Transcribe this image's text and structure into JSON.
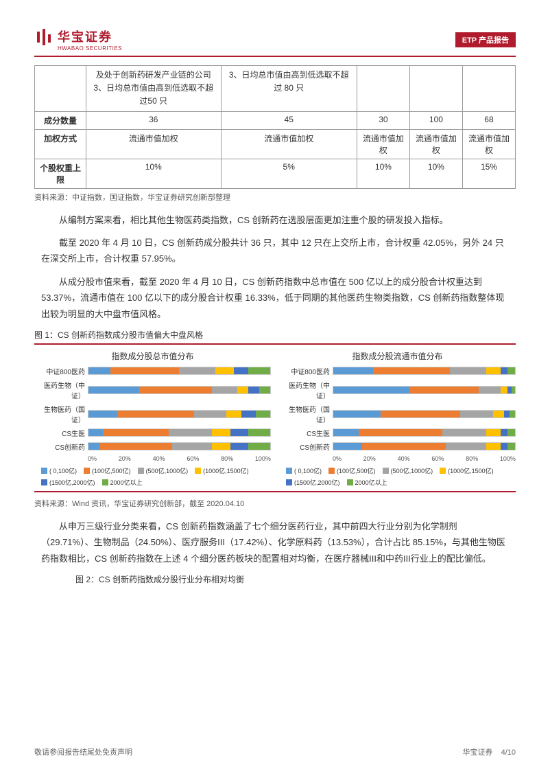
{
  "header": {
    "logo_cn": "华宝证券",
    "logo_en": "HWABAO SECURITIES",
    "badge": "ETP 产品报告"
  },
  "table": {
    "row0_col1": "及处于创新药研发产业链的公司\n3、日均总市值由高到低选取不超过50 只",
    "row0_col2": "3、日均总市值由高到低选取不超过 80 只",
    "rows": [
      {
        "hdr": "成分数量",
        "cells": [
          "36",
          "45",
          "30",
          "100",
          "68"
        ]
      },
      {
        "hdr": "加权方式",
        "cells": [
          "流通市值加权",
          "流通市值加权",
          "流通市值加权",
          "流通市值加权",
          "流通市值加权"
        ]
      },
      {
        "hdr": "个股权重上限",
        "cells": [
          "10%",
          "5%",
          "10%",
          "10%",
          "15%"
        ]
      }
    ],
    "source": "资料来源：中证指数，国证指数，华宝证券研究创新部整理"
  },
  "paras": [
    "从编制方案来看，相比其他生物医药类指数，CS 创新药在选股层面更加注重个股的研发投入指标。",
    "截至 2020 年 4 月 10 日，CS 创新药成分股共计 36 只，其中 12 只在上交所上市，合计权重 42.05%，另外 24 只在深交所上市，合计权重 57.95%。",
    "从成分股市值来看，截至 2020 年 4 月 10 日，CS 创新药指数中总市值在 500 亿以上的成分股合计权重达到 53.37%，流通市值在 100 亿以下的成分股合计权重 16.33%，低于同期的其他医药生物类指数，CS 创新药指数整体现出较为明显的大中盘市值风格。"
  ],
  "fig1": {
    "title": "图 1：CS 创新药指数成分股市值偏大中盘风格",
    "source": "资料来源：Wind 资讯，华宝证券研究创新部，截至 2020.04.10",
    "colors": {
      "c1": "#5b9bd5",
      "c2": "#ed7d31",
      "c3": "#a5a5a5",
      "c4": "#ffc000",
      "c5": "#4472c4",
      "c6": "#70ad47"
    },
    "legend_labels": [
      "( 0,100亿)",
      "(100亿,500亿)",
      "(500亿,1000亿)",
      "(1000亿,1500亿)",
      "(1500亿,2000亿)",
      "2000亿以上"
    ],
    "left": {
      "title": "指数成分股总市值分布",
      "categories": [
        "中证800医药",
        "医药生物（中证）",
        "生物医药（国证）",
        "CS生医",
        "CS创新药"
      ],
      "series": [
        [
          12,
          38,
          20,
          10,
          8,
          12
        ],
        [
          28,
          40,
          14,
          6,
          6,
          6
        ],
        [
          16,
          42,
          18,
          8,
          8,
          8
        ],
        [
          8,
          36,
          24,
          10,
          10,
          12
        ],
        [
          6,
          40,
          22,
          10,
          10,
          12
        ]
      ],
      "axis": [
        "0%",
        "20%",
        "40%",
        "60%",
        "80%",
        "100%"
      ]
    },
    "right": {
      "title": "指数成分股流通市值分布",
      "categories": [
        "中证800医药",
        "医药生物（中证）",
        "生物医药（国证）",
        "CS生医",
        "CS创新药"
      ],
      "series": [
        [
          22,
          42,
          20,
          8,
          4,
          4
        ],
        [
          42,
          38,
          12,
          4,
          2,
          2
        ],
        [
          26,
          44,
          18,
          6,
          3,
          3
        ],
        [
          14,
          46,
          24,
          8,
          4,
          4
        ],
        [
          16,
          46,
          22,
          8,
          4,
          4
        ]
      ],
      "axis": [
        "0%",
        "20%",
        "40%",
        "60%",
        "80%",
        "100%"
      ]
    }
  },
  "para4": "从申万三级行业分类来看，CS 创新药指数涵盖了七个细分医药行业，其中前四大行业分别为化学制剂（29.71%）、生物制品（24.50%）、医疗服务III（17.42%）、化学原料药（13.53%），合计占比 85.15%，与其他生物医药指数相比，CS 创新药指数在上述 4 个细分医药板块的配置相对均衡，在医疗器械III和中药III行业上的配比偏低。",
  "fig2_title": "图 2：CS 创新药指数成分股行业分布相对均衡",
  "footer": {
    "left": "敬请参阅报告结尾处免责声明",
    "right_a": "华宝证券",
    "right_b": "4/10"
  }
}
